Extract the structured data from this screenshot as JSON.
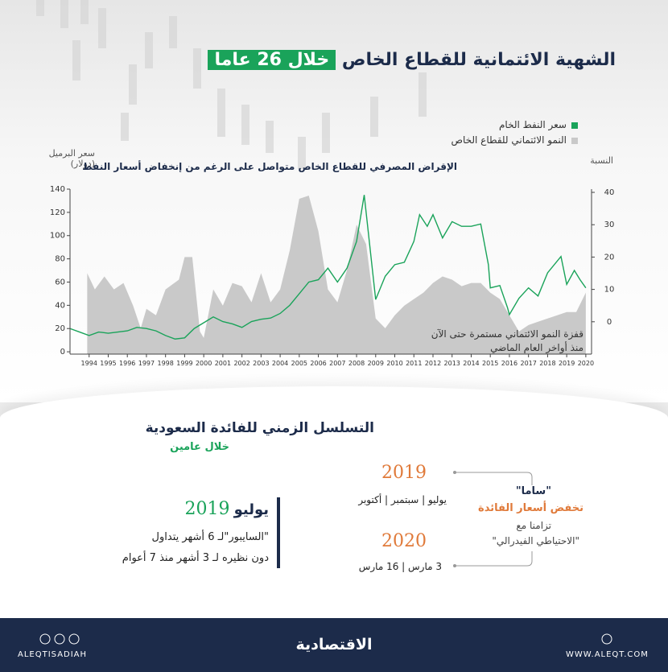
{
  "header": {
    "title": "الشهية الائتمانية للقطاع الخاص",
    "title_highlight": "خلال 26 عاما"
  },
  "chart_data": {
    "type": "line",
    "subtitle": "الإقراض المصرفي للقطاع الخاص متواصل على الرغم من إنخفاض أسعار النفط",
    "y_label": [
      "سعر البرميل",
      "(دولار)"
    ],
    "y2_label": "النسبة",
    "annotation": [
      "قفزة النمو الائتماني مستمرة حتى الآن",
      "منذ أواخر العام الماضي"
    ],
    "xlim": [
      1993,
      2020.3
    ],
    "xticks": [
      1994,
      1995,
      1996,
      1997,
      1998,
      1999,
      2000,
      2001,
      2002,
      2003,
      2004,
      2005,
      2006,
      2007,
      2008,
      2009,
      2010,
      2011,
      2012,
      2013,
      2014,
      2015,
      2016,
      2017,
      2018,
      2019,
      2020
    ],
    "ylim": [
      -2,
      140
    ],
    "yticks": [
      0,
      20,
      40,
      60,
      80,
      100,
      120,
      140
    ],
    "y2lim": [
      -10,
      41
    ],
    "y2ticks": [
      0,
      10,
      20,
      30,
      40
    ],
    "series": [
      {
        "name": "النمو الائتماني للقطاع الخاص",
        "color": "#c9c9c9",
        "style": "area",
        "axis": "y2",
        "x": [
          1993.9,
          1994.3,
          1994.8,
          1995.3,
          1995.8,
          1996.3,
          1996.7,
          1997,
          1997.5,
          1998,
          1998.7,
          1999,
          1999.4,
          1999.8,
          2000,
          2000.5,
          2001,
          2001.5,
          2002,
          2002.5,
          2003,
          2003.5,
          2004,
          2004.5,
          2005,
          2005.5,
          2006,
          2006.5,
          2007,
          2007.5,
          2008,
          2008.5,
          2009,
          2009.5,
          2010,
          2010.5,
          2011,
          2011.5,
          2012,
          2012.5,
          2013,
          2013.5,
          2014,
          2014.5,
          2015,
          2015.5,
          2016,
          2016.5,
          2017,
          2017.5,
          2018,
          2018.5,
          2019,
          2019.5,
          2020
        ],
        "values": [
          15,
          10,
          14,
          10,
          12,
          5,
          -2,
          4,
          2,
          10,
          13,
          20,
          20,
          -3,
          -5,
          10,
          5,
          12,
          11,
          6,
          15,
          6,
          10,
          22,
          38,
          39,
          28,
          10,
          6,
          16,
          30,
          24,
          1,
          -2,
          2,
          5,
          7,
          9,
          12,
          14,
          13,
          11,
          12,
          12,
          9,
          7,
          2,
          -3,
          -1,
          0,
          1,
          2,
          3,
          3,
          9
        ]
      },
      {
        "name": "سعر النفط الخام",
        "color": "#1aa35a",
        "style": "line",
        "axis": "y",
        "x": [
          1993,
          1993.5,
          1994,
          1994.5,
          1995,
          1995.5,
          1996,
          1996.5,
          1997,
          1997.5,
          1998,
          1998.5,
          1999,
          1999.5,
          2000,
          2000.5,
          2001,
          2001.5,
          2002,
          2002.5,
          2003,
          2003.5,
          2004,
          2004.5,
          2005,
          2005.5,
          2006,
          2006.5,
          2007,
          2007.5,
          2008,
          2008.4,
          2008.7,
          2009,
          2009.5,
          2010,
          2010.5,
          2011,
          2011.3,
          2011.7,
          2012,
          2012.5,
          2013,
          2013.5,
          2014,
          2014.5,
          2014.9,
          2015,
          2015.5,
          2015.9,
          2016,
          2016.5,
          2017,
          2017.5,
          2018,
          2018.7,
          2019,
          2019.4,
          2019.7,
          2020
        ],
        "values": [
          20,
          17,
          14,
          17,
          16,
          17,
          18,
          21,
          20,
          18,
          14,
          11,
          12,
          20,
          25,
          30,
          26,
          24,
          21,
          26,
          28,
          29,
          33,
          40,
          50,
          60,
          62,
          72,
          60,
          72,
          95,
          135,
          90,
          45,
          65,
          75,
          77,
          95,
          118,
          108,
          118,
          98,
          112,
          108,
          108,
          110,
          75,
          55,
          57,
          38,
          32,
          46,
          55,
          48,
          68,
          82,
          58,
          70,
          62,
          55
        ]
      }
    ]
  },
  "timeline": {
    "title": "التسلسل الزمني للفائدة السعودية",
    "subtitle": "خلال عامين",
    "year_a": "2019",
    "months_a": "يوليو | سبتمبر | أكتوبر",
    "year_b": "2020",
    "months_b": "3 مارس | 16 مارس",
    "source": "\"ساما\"",
    "action": "تخفض أسعار الفائدة",
    "sync": "تزامنا مع",
    "fed": "\"الاحتياطي الفيدرالي\"",
    "box_month": "يوليو",
    "box_year": "2019",
    "box_line1": "\"السايبور\"لـ 6 أشهر يتداول",
    "box_line2": "دون نظيره لـ 3 أشهر منذ 7 أعوام"
  },
  "footer": {
    "logo": "الاقتصادية",
    "handle": "ALEQTISADIAH",
    "site": "WWW.ALEQT.COM"
  }
}
